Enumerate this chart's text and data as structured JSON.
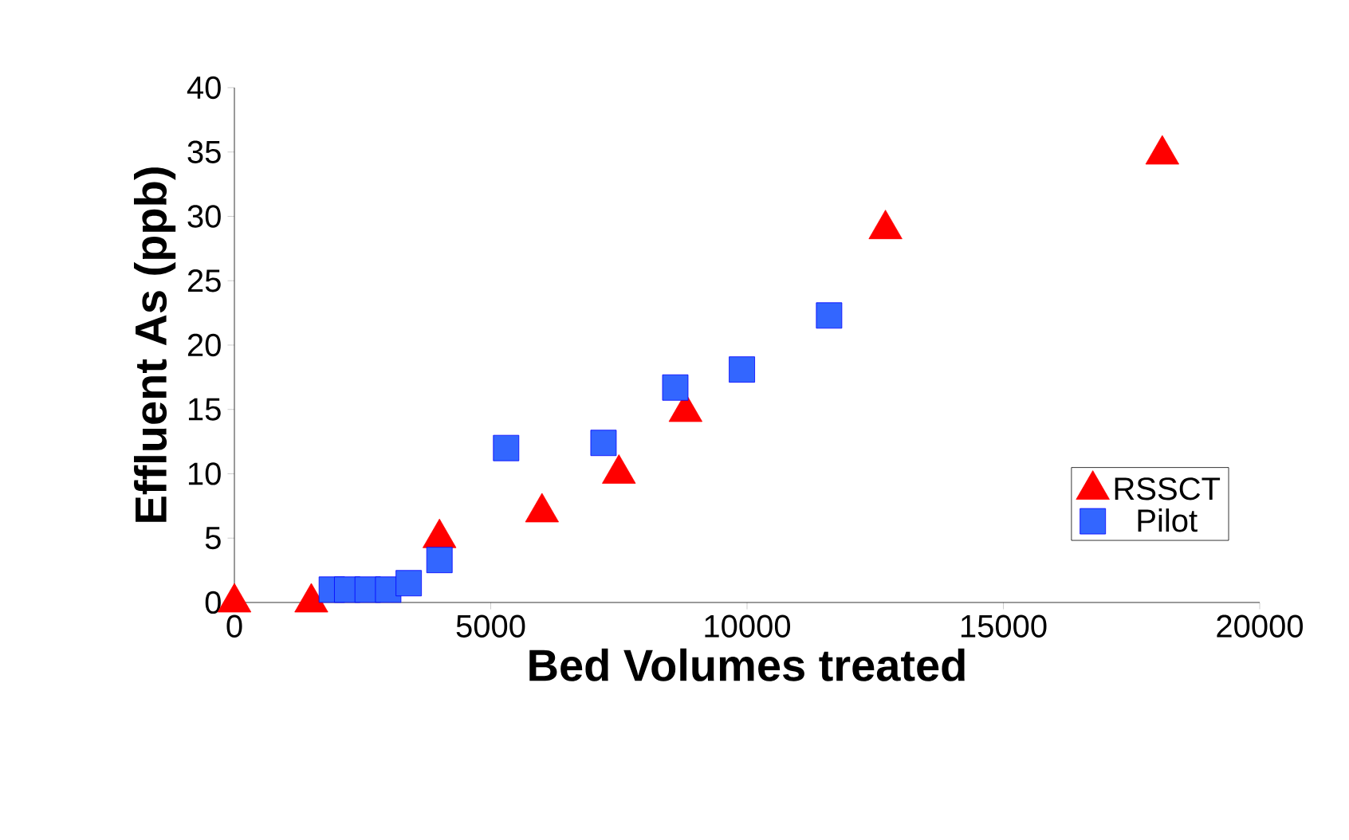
{
  "chart_data": {
    "type": "scatter",
    "xlabel": "Bed Volumes treated",
    "ylabel": "Effluent As (ppb)",
    "xlim": [
      0,
      20000
    ],
    "ylim": [
      0,
      40
    ],
    "xticks": [
      0,
      5000,
      10000,
      15000,
      20000
    ],
    "yticks": [
      0,
      5,
      10,
      15,
      20,
      25,
      30,
      35,
      40
    ],
    "grid": false,
    "legend": "bottom right",
    "series": [
      {
        "name": "RSSCT",
        "color": "#ff0000",
        "marker": "triangle",
        "x": [
          0,
          1500,
          4000,
          6000,
          7500,
          8800,
          12700,
          18100
        ],
        "values": [
          0,
          0,
          5,
          7,
          10,
          14.8,
          29,
          34.8
        ]
      },
      {
        "name": "Pilot",
        "color": "#3366ff",
        "marker": "square",
        "x": [
          1900,
          2200,
          2600,
          3000,
          3400,
          4000,
          5300,
          7200,
          8600,
          9900,
          11600
        ],
        "values": [
          1,
          1,
          1,
          1,
          1.5,
          3.3,
          12,
          12.4,
          16.7,
          18.1,
          22.3
        ]
      }
    ]
  }
}
